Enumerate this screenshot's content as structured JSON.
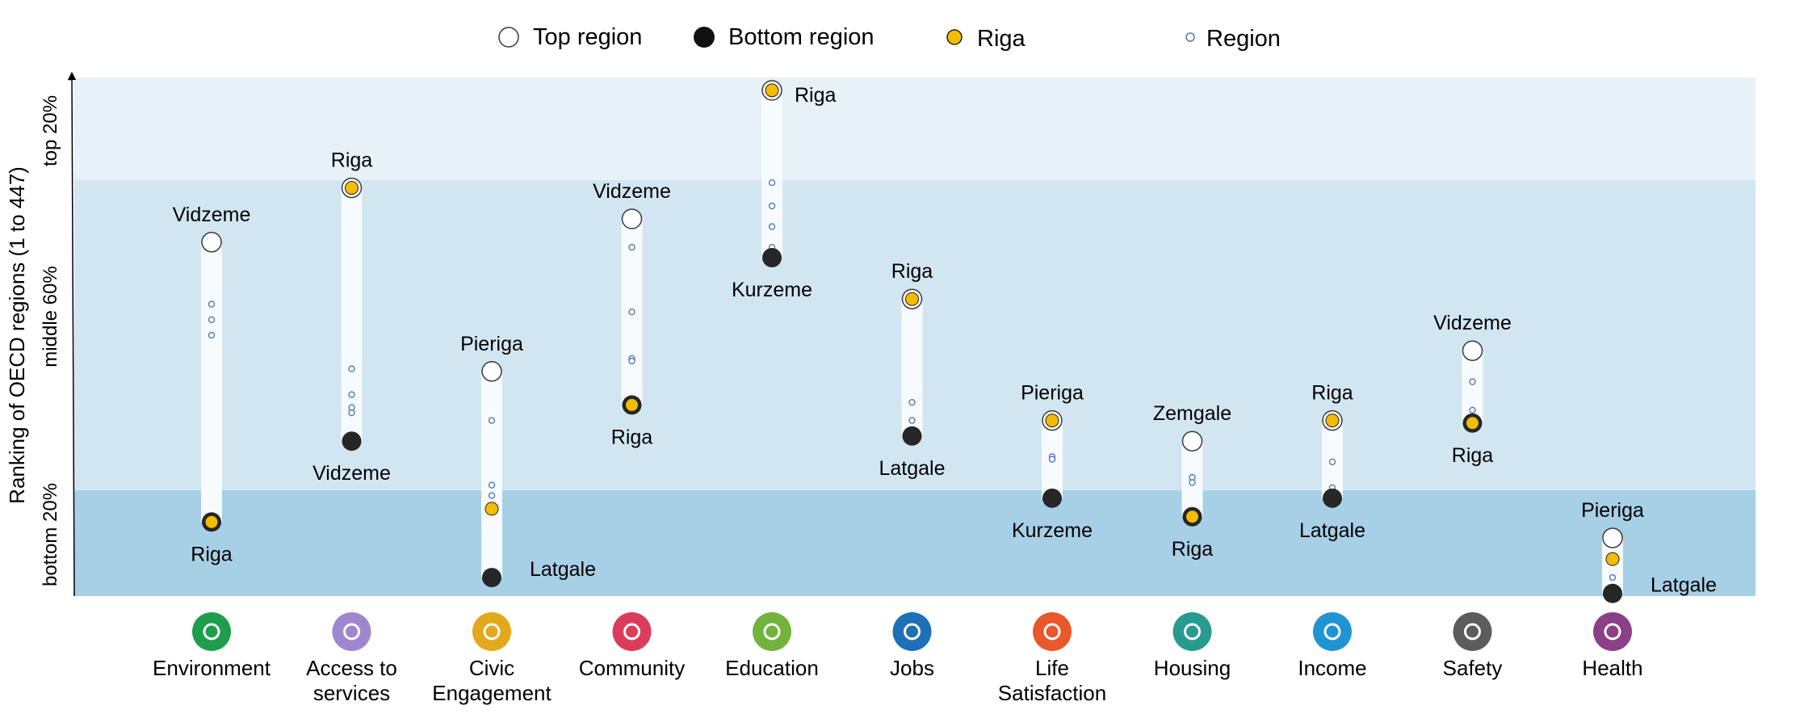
{
  "legend": {
    "top": "Top region",
    "bottom": "Bottom region",
    "highlight": "Riga",
    "region": "Region"
  },
  "y_axis": {
    "label": "Ranking of OECD regions (1 to 447)",
    "bands": [
      "top 20%",
      "middle 60%",
      "bottom 20%"
    ]
  },
  "colors": {
    "band_top": "#e6f1f8",
    "band_middle": "#d2e6f1",
    "band_bottom": "#a7cfe6",
    "bar": "#f7fbfe",
    "highlight": "#f2bc00",
    "bottom_dot": "#262626",
    "region_dot": "#4f7ab3"
  },
  "chart_data": {
    "type": "scatter",
    "title": "",
    "ylabel": "Ranking of OECD regions (1 to 447)",
    "y_scale": "relative position, 0 = bottom, 100 = top",
    "ylim": [
      0,
      100
    ],
    "bands": [
      {
        "label": "bottom 20%",
        "from": 0,
        "to": 20
      },
      {
        "label": "middle 60%",
        "from": 20,
        "to": 80
      },
      {
        "label": "top 20%",
        "from": 80,
        "to": 100
      }
    ],
    "categories": [
      {
        "name": "Environment",
        "icon": "tree-icon",
        "color": "#1e9e4a",
        "top": {
          "label": "Vidzeme",
          "value": 68
        },
        "bottom": {
          "label": "Riga",
          "value": 14
        },
        "highlight": "bottom",
        "others": [
          56,
          53,
          50
        ]
      },
      {
        "name": "Access to services",
        "icon": "network-icon",
        "color": "#9e87cf",
        "top": {
          "label": "Riga",
          "value": 78.5
        },
        "bottom": {
          "label": "Vidzeme",
          "value": 29.5
        },
        "highlight": "top",
        "others": [
          43.5,
          38.5,
          36,
          35
        ]
      },
      {
        "name": "Civic Engagement",
        "icon": "ballot-icon",
        "color": "#e3a81b",
        "top": {
          "label": "Pieriga",
          "value": 43
        },
        "bottom": {
          "label": "Latgale",
          "value": 3.5
        },
        "highlight": "other",
        "highlight_value": 16.5,
        "others": [
          33.5,
          21,
          19
        ]
      },
      {
        "name": "Community",
        "icon": "people-icon",
        "color": "#dc3c5c",
        "top": {
          "label": "Vidzeme",
          "value": 72.5
        },
        "bottom": {
          "label": "Riga",
          "value": 36.5
        },
        "highlight": "bottom",
        "others": [
          67,
          54.5,
          45.5,
          45
        ]
      },
      {
        "name": "Education",
        "icon": "book-icon",
        "color": "#72b33c",
        "top": {
          "label": "Riga",
          "value": 97.5
        },
        "bottom": {
          "label": "Kurzeme",
          "value": 65
        },
        "highlight": "top",
        "others": [
          79.5,
          75,
          71,
          67
        ]
      },
      {
        "name": "Jobs",
        "icon": "briefcase-icon",
        "color": "#1e6fb5",
        "top": {
          "label": "Riga",
          "value": 57
        },
        "bottom": {
          "label": "Latgale",
          "value": 30.5
        },
        "highlight": "top",
        "others": [
          37,
          33.5
        ]
      },
      {
        "name": "Life Satisfaction",
        "icon": "heart-icon",
        "color": "#e9572a",
        "top": {
          "label": "Pieriga",
          "value": 33.5
        },
        "bottom": {
          "label": "Kurzeme",
          "value": 18.5
        },
        "highlight": "top",
        "others": [
          26.5,
          26
        ]
      },
      {
        "name": "Housing",
        "icon": "house-icon",
        "color": "#279b8f",
        "top": {
          "label": "Zemgale",
          "value": 29.5
        },
        "bottom": {
          "label": "Riga",
          "value": 15
        },
        "highlight": "bottom",
        "others": [
          22.5,
          21.5
        ]
      },
      {
        "name": "Income",
        "icon": "money-icon",
        "color": "#1f94d4",
        "top": {
          "label": "Riga",
          "value": 33.5
        },
        "bottom": {
          "label": "Latgale",
          "value": 18.5
        },
        "highlight": "top",
        "others": [
          25.5,
          20.5
        ]
      },
      {
        "name": "Safety",
        "icon": "running-icon",
        "color": "#5c5c5c",
        "top": {
          "label": "Vidzeme",
          "value": 47
        },
        "bottom": {
          "label": "Riga",
          "value": 33
        },
        "highlight": "bottom",
        "others": [
          41,
          35.5
        ]
      },
      {
        "name": "Health",
        "icon": "cross-icon",
        "color": "#8b3f86",
        "top": {
          "label": "Pieriga",
          "value": 11
        },
        "bottom": {
          "label": "Latgale",
          "value": 0.5
        },
        "highlight": "other",
        "highlight_value": 7,
        "others": [
          3.5
        ]
      }
    ]
  }
}
